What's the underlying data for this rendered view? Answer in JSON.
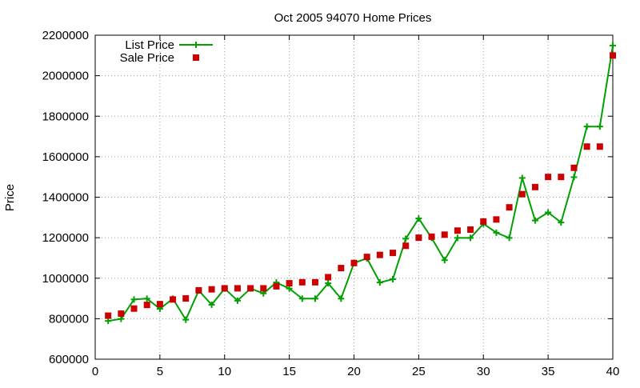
{
  "chart_data": {
    "type": "line",
    "title": "Oct 2005 94070 Home Prices",
    "xlabel": "",
    "ylabel": "Price",
    "xlim": [
      0,
      40
    ],
    "ylim": [
      600000,
      2200000
    ],
    "x_ticks": [
      0,
      5,
      10,
      15,
      20,
      25,
      30,
      35,
      40
    ],
    "y_ticks": [
      600000,
      800000,
      1000000,
      1200000,
      1400000,
      1600000,
      1800000,
      2000000,
      2200000
    ],
    "grid": true,
    "legend_position": "top-left",
    "series": [
      {
        "name": "List Price",
        "style": "line-with-plus-markers",
        "color": "#00a000",
        "x": [
          1,
          2,
          3,
          4,
          5,
          6,
          7,
          8,
          9,
          10,
          11,
          12,
          13,
          14,
          15,
          16,
          17,
          18,
          19,
          20,
          21,
          22,
          23,
          24,
          25,
          26,
          27,
          28,
          29,
          30,
          31,
          32,
          33,
          34,
          35,
          36,
          37,
          38,
          39,
          40
        ],
        "values": [
          789000,
          799000,
          895000,
          899000,
          849000,
          899000,
          795000,
          939000,
          869000,
          949000,
          889000,
          949000,
          925000,
          979000,
          949000,
          899000,
          899000,
          975000,
          899000,
          1075000,
          1098000,
          979000,
          995000,
          1195000,
          1295000,
          1199000,
          1089000,
          1199000,
          1199000,
          1269000,
          1225000,
          1199000,
          1495000,
          1285000,
          1325000,
          1275000,
          1499000,
          1749000,
          1749000,
          2149000
        ]
      },
      {
        "name": "Sale Price",
        "style": "square-markers",
        "color": "#cc0000",
        "x": [
          1,
          2,
          3,
          4,
          5,
          6,
          7,
          8,
          9,
          10,
          11,
          12,
          13,
          14,
          15,
          16,
          17,
          18,
          19,
          20,
          21,
          22,
          23,
          24,
          25,
          26,
          27,
          28,
          29,
          30,
          31,
          32,
          33,
          34,
          35,
          36,
          37,
          38,
          39,
          40
        ],
        "values": [
          815000,
          825000,
          850000,
          868000,
          872000,
          895000,
          900000,
          940000,
          945000,
          950000,
          950000,
          950000,
          950000,
          960000,
          975000,
          980000,
          980000,
          1005000,
          1050000,
          1075000,
          1105000,
          1115000,
          1125000,
          1160000,
          1200000,
          1205000,
          1215000,
          1235000,
          1240000,
          1280000,
          1290000,
          1350000,
          1415000,
          1450000,
          1500000,
          1500000,
          1545000,
          1650000,
          1650000,
          2100000
        ]
      }
    ]
  }
}
